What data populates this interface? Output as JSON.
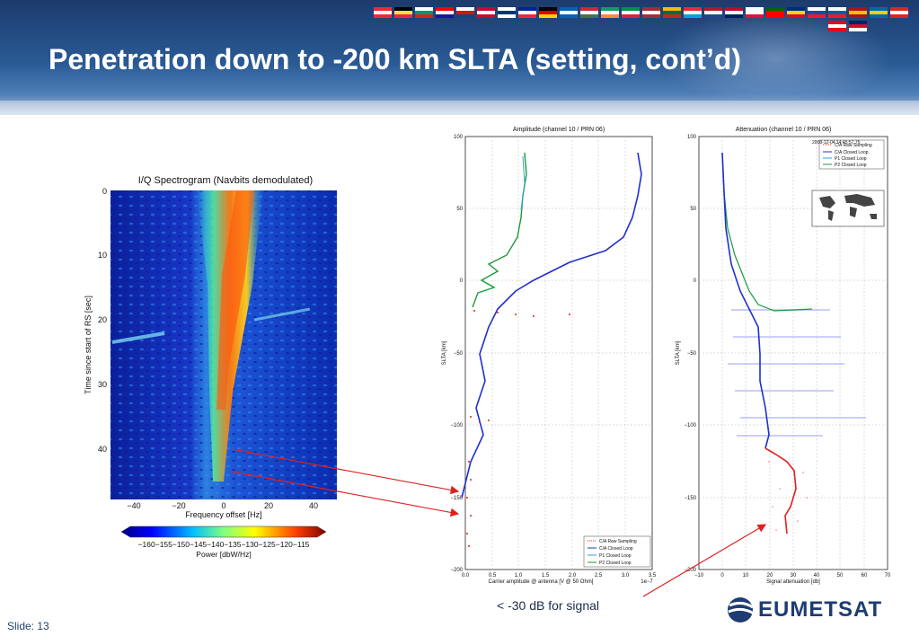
{
  "title": "Penetration down to -200 km SLTA (setting, cont’d)",
  "slide_label": "Slide: 13",
  "annotation": "< -30 dB for signal",
  "logo_text": "EUMETSAT",
  "spectrogram": {
    "title": "I/Q Spectrogram (Navbits demodulated)",
    "ylabel": "Time since start of RS [sec]",
    "xlabel": "Frequency offset [Hz]",
    "yticks": [
      "0",
      "10",
      "20",
      "30",
      "40"
    ],
    "xticks": [
      "−40",
      "−20",
      "0",
      "20",
      "40"
    ],
    "colorbar_label": "Power [dbW/Hz]",
    "colorbar_ticks": "−160−155−150−145−140−135−130−125−120−115"
  },
  "amplitude_plot": {
    "title": "Amplitude (channel 10 / PRN 06)",
    "ylabel": "SLTA [km]",
    "xlabel": "Carrier amplitude @ antenna [V @ 50 Ohm]",
    "x_exponent": "1e−7",
    "yticks": [
      "100",
      "50",
      "0",
      "−50",
      "−100",
      "−150",
      "−200"
    ],
    "xticks": [
      "0.0",
      "0.5",
      "1.0",
      "1.5",
      "2.0",
      "2.5",
      "3.0",
      "3.5"
    ],
    "legend": [
      "C/A Raw Sampling",
      "C/A Closed Loop",
      "P1  Closed Loop",
      "P2  Closed Loop"
    ]
  },
  "attenuation_plot": {
    "title": "Attenuation (channel 10 / PRN 06)",
    "ylabel": "SLTA [km]",
    "xlabel": "Signal attenuation [db]",
    "yticks": [
      "100",
      "50",
      "0",
      "−50",
      "−100",
      "−150",
      "−200"
    ],
    "xticks": [
      "−10",
      "0",
      "10",
      "20",
      "30",
      "40",
      "50",
      "60",
      "70"
    ],
    "timestamp": "2008-12-04 14:45:57.75",
    "legend": [
      "C/A Raw Sampling",
      "C/A Closed Loop",
      "P1  Closed Loop",
      "P2  Closed Loop"
    ]
  },
  "colors": {
    "banner_dark": "#1d3b6d",
    "banner_light": "#4f7fb6",
    "title": "#ffffff",
    "arrow": "#e02020",
    "ca_raw": "#e02020",
    "ca_closed": "#1f2fd0",
    "p1_closed": "#29a3d6",
    "p2_closed": "#1b9a3a",
    "logo": "#1e3c72"
  },
  "flags": [
    "at",
    "be",
    "bg",
    "hr",
    "cz",
    "dk",
    "fi",
    "fr",
    "de",
    "gr",
    "hu",
    "ie",
    "it",
    "lv",
    "lt",
    "lu",
    "nl",
    "no",
    "pl",
    "pt",
    "ro",
    "sk",
    "si",
    "es",
    "se",
    "ch",
    "tr",
    "gb"
  ]
}
